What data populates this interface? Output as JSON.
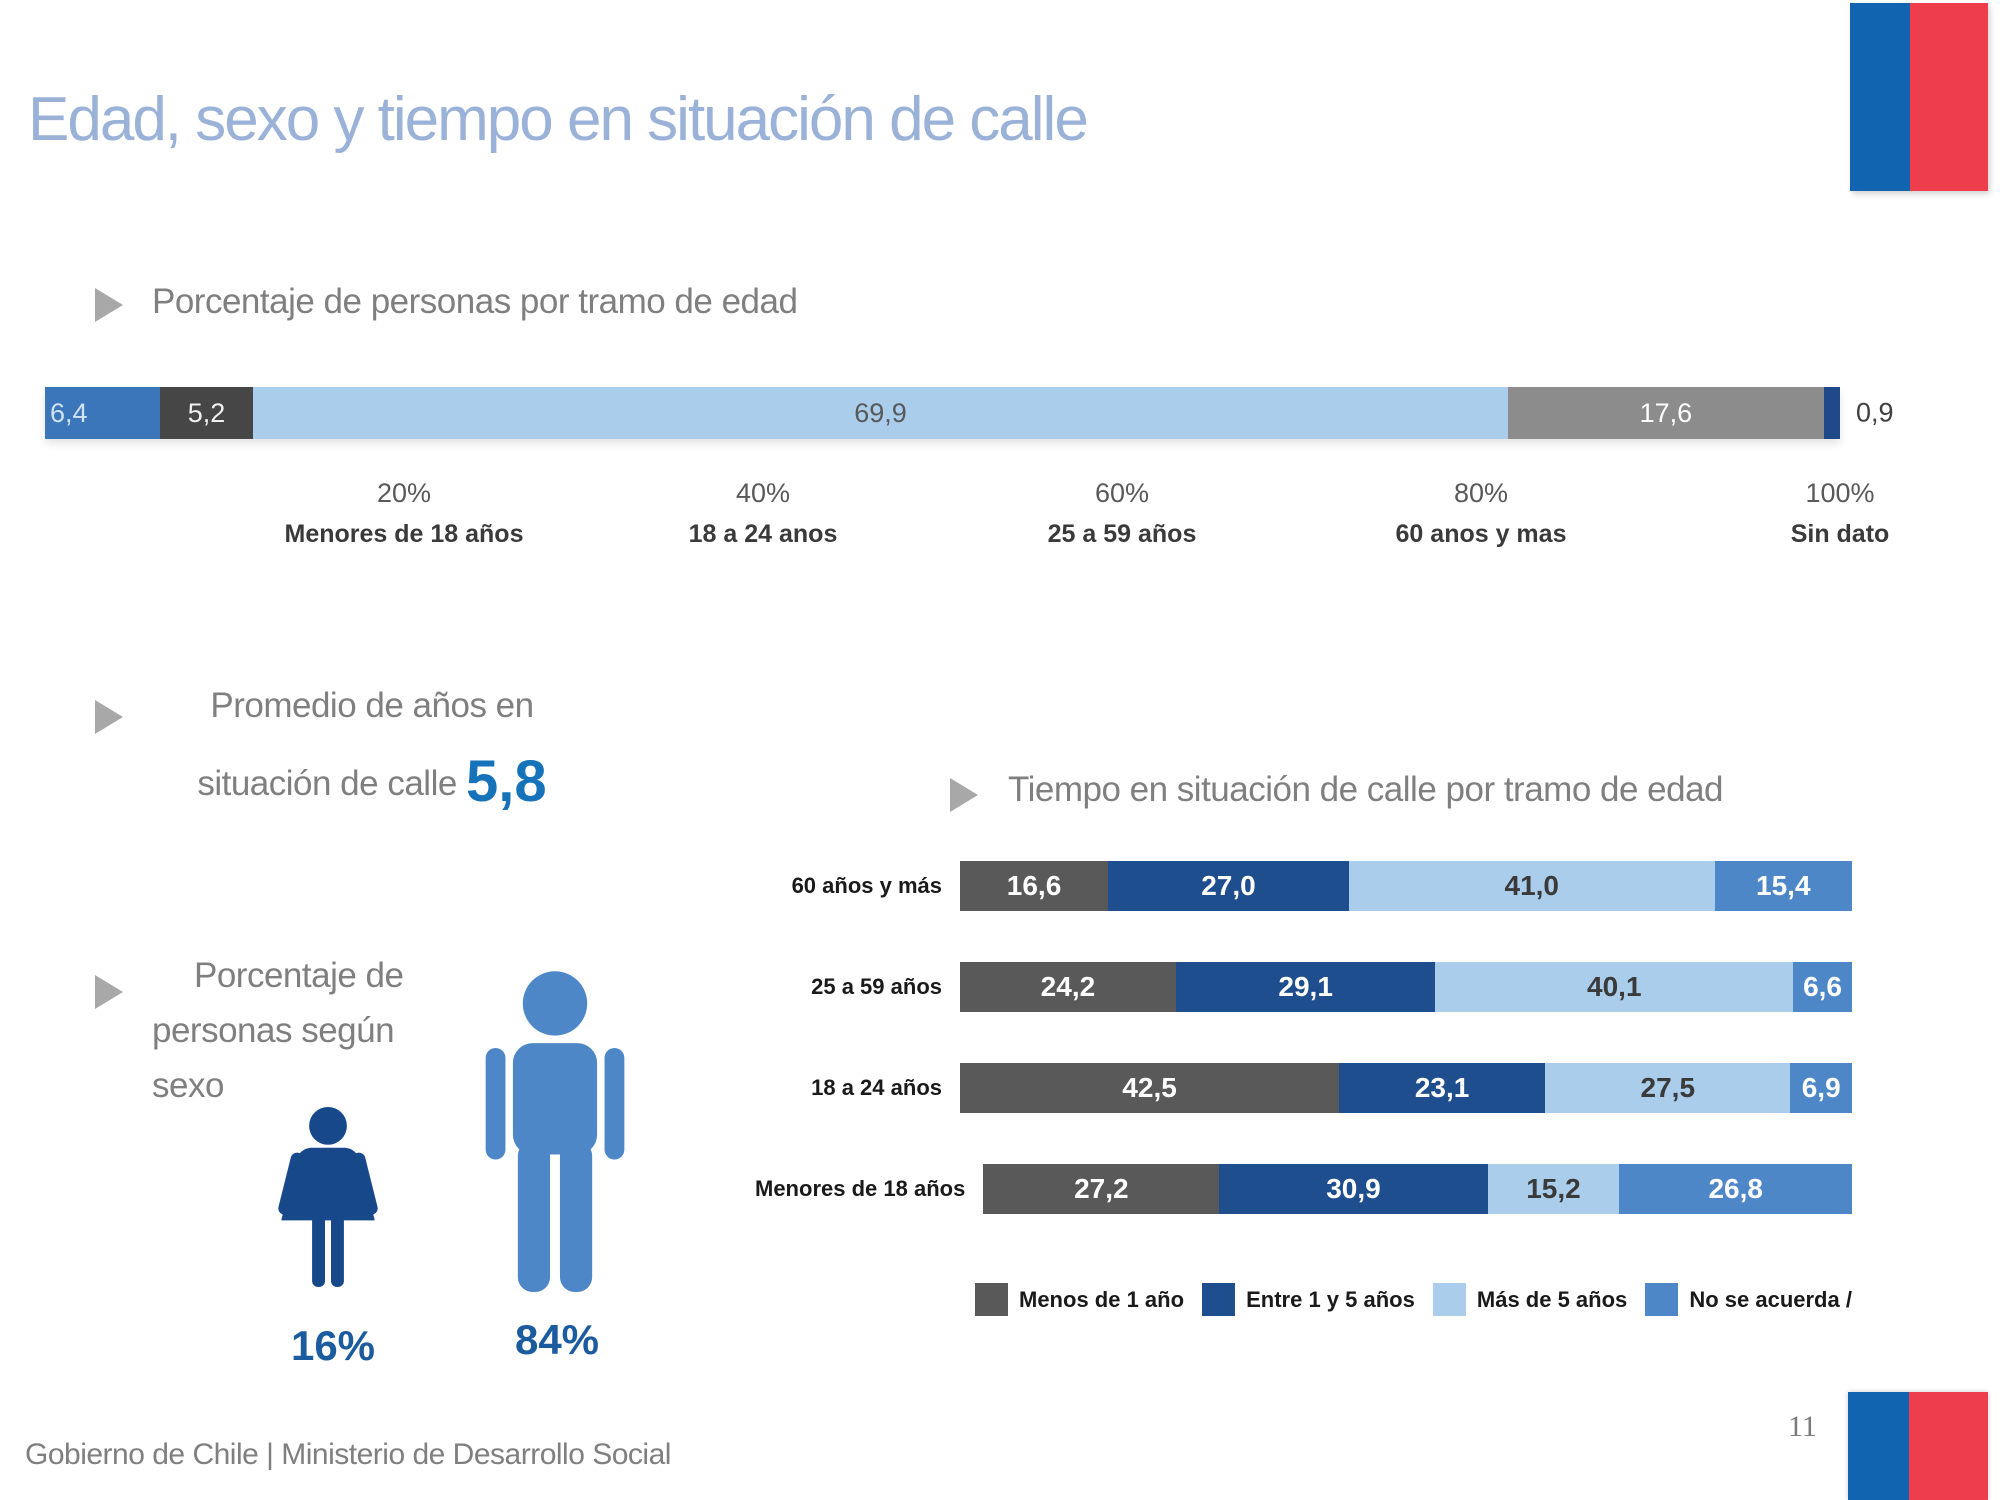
{
  "slide": {
    "title": "Edad, sexo y tiempo en situación de calle",
    "footer": "Gobierno de Chile | Ministerio de Desarrollo Social",
    "page_number": "11",
    "flag_blue": "#1164af",
    "flag_red": "#ef3e4b"
  },
  "chart_data": [
    {
      "type": "bar",
      "orientation": "horizontal-stacked",
      "title": "Porcentaje de personas por tramo de edad",
      "categories": [
        "Menores de 18 años",
        "18  a 24 anos",
        "25 a 59 años",
        "60 anos y mas",
        "Sin dato"
      ],
      "values": [
        6.4,
        5.2,
        69.9,
        17.6,
        0.9
      ],
      "value_labels": [
        "6,4",
        "5,2",
        "69,9",
        "17,6",
        "0,9"
      ],
      "colors": [
        "#3b76bb",
        "#464646",
        "#a9cdeb",
        "#8c8c8c",
        "#1f4989"
      ],
      "label_colors": [
        "#d3e2f2",
        "#f0f0f0",
        "#595959",
        "#ffffff",
        "#404040"
      ],
      "x_ticks": [
        "20%",
        "40%",
        "60%",
        "80%",
        "100%"
      ],
      "xlim": [
        0,
        100
      ],
      "last_label_outside": true
    },
    {
      "type": "bar",
      "orientation": "horizontal-stacked",
      "title": "Tiempo en situación de calle por tramo de edad",
      "categories": [
        "60 años y más",
        "25 a 59 años",
        "18 a 24 años",
        "Menores de 18 años"
      ],
      "series": [
        {
          "name": "Menos de 1 año",
          "color": "#595959",
          "label_color": "#ffffff",
          "values": [
            16.6,
            24.2,
            42.5,
            27.2
          ]
        },
        {
          "name": "Entre 1 y 5 años",
          "color": "#1f4e8f",
          "label_color": "#ffffff",
          "values": [
            27.0,
            29.1,
            23.1,
            30.9
          ]
        },
        {
          "name": "Más de 5 años",
          "color": "#a9cdeb",
          "label_color": "#3a3a3a",
          "values": [
            41.0,
            40.1,
            27.5,
            15.2
          ]
        },
        {
          "name": "No se acuerda /",
          "color": "#4e87c8",
          "label_color": "#ffffff",
          "values": [
            15.4,
            6.6,
            6.9,
            26.8
          ]
        }
      ],
      "value_labels": [
        [
          "16,6",
          "27,0",
          "41,0",
          "15,4"
        ],
        [
          "24,2",
          "29,1",
          "40,1",
          "6,6"
        ],
        [
          "42,5",
          "23,1",
          "27,5",
          "6,9"
        ],
        [
          "27,2",
          "30,9",
          "15,2",
          "26,8"
        ]
      ],
      "legend_position": "bottom",
      "xlim": [
        0,
        100
      ]
    },
    {
      "type": "stat",
      "title_line1": "Promedio de años en",
      "title_line2": "situación de calle",
      "value": "5,8",
      "value_color": "#1673ba"
    },
    {
      "type": "pictogram",
      "heading_lines": [
        "Porcentaje de",
        "personas según",
        "sexo"
      ],
      "items": [
        {
          "name": "mujeres",
          "icon": "woman-icon",
          "value": "16%",
          "color": "#17498a"
        },
        {
          "name": "hombres",
          "icon": "man-icon",
          "value": "84%",
          "color": "#4e87c8"
        }
      ]
    }
  ]
}
